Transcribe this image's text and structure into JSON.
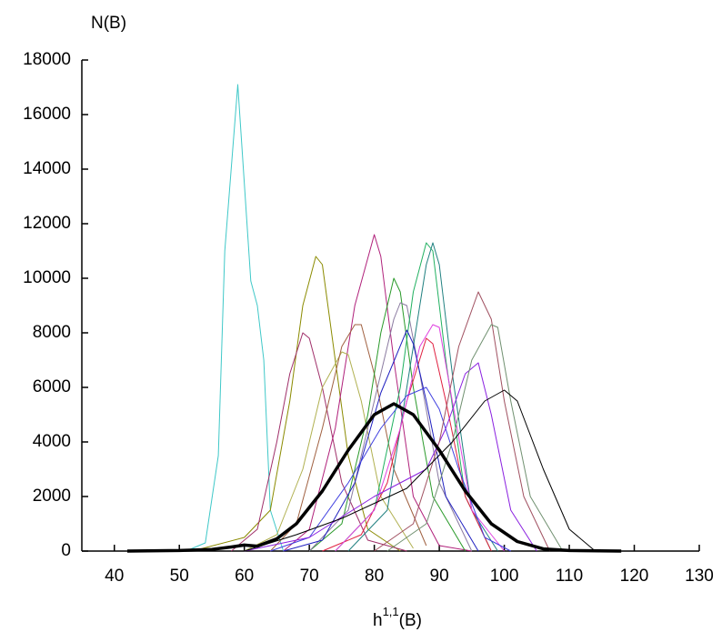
{
  "chart_data": {
    "type": "line",
    "ylabel": "N(B)",
    "xlabel": {
      "base": "h",
      "sup": "1,1",
      "suffix": "(B)"
    },
    "xlim": [
      35,
      130
    ],
    "ylim": [
      0,
      18000
    ],
    "xticks": [
      40,
      50,
      60,
      70,
      80,
      90,
      100,
      110,
      120,
      130
    ],
    "yticks": [
      0,
      2000,
      4000,
      6000,
      8000,
      10000,
      12000,
      14000,
      16000,
      18000
    ],
    "grid": false,
    "series": [
      {
        "color": "#3fc8c8",
        "line_width": 1,
        "x": [
          51,
          54,
          56,
          57,
          59,
          61,
          62,
          63,
          64,
          66
        ],
        "values": [
          0,
          300,
          3500,
          11000,
          17100,
          9900,
          9000,
          7000,
          1500,
          0
        ]
      },
      {
        "color": "#8b8b00",
        "line_width": 1,
        "x": [
          52,
          60,
          64,
          67,
          69,
          71,
          72,
          74,
          76,
          79,
          84
        ],
        "values": [
          0,
          500,
          1500,
          5500,
          9000,
          10800,
          10500,
          7000,
          3500,
          800,
          0
        ]
      },
      {
        "color": "#a0306a",
        "line_width": 1,
        "x": [
          58,
          62,
          65,
          67,
          69,
          70,
          72,
          75,
          79,
          85
        ],
        "values": [
          0,
          800,
          4000,
          6500,
          8000,
          7800,
          6000,
          2500,
          400,
          0
        ]
      },
      {
        "color": "#b0207a",
        "line_width": 1,
        "x": [
          66,
          70,
          74,
          77,
          80,
          81,
          83,
          86,
          90,
          95
        ],
        "values": [
          0,
          800,
          4500,
          9000,
          11600,
          10800,
          7000,
          2000,
          200,
          0
        ]
      },
      {
        "color": "#b0b050",
        "line_width": 1,
        "x": [
          60,
          65,
          69,
          72,
          75,
          76,
          78,
          81,
          86
        ],
        "values": [
          0,
          600,
          3000,
          6000,
          7300,
          7200,
          5500,
          2000,
          100
        ]
      },
      {
        "color": "#a06040",
        "line_width": 1,
        "x": [
          64,
          68,
          72,
          75,
          77,
          78,
          80,
          83,
          88
        ],
        "values": [
          0,
          1000,
          4500,
          7500,
          8300,
          8300,
          6500,
          3000,
          200
        ]
      },
      {
        "color": "#2a9a2a",
        "line_width": 1,
        "x": [
          70,
          75,
          79,
          81,
          83,
          84,
          86,
          89,
          94
        ],
        "values": [
          0,
          1000,
          5000,
          8000,
          10000,
          9500,
          6000,
          2000,
          0
        ]
      },
      {
        "color": "#8a7aa0",
        "line_width": 1,
        "x": [
          70,
          76,
          80,
          83,
          84,
          85,
          87,
          90,
          95
        ],
        "values": [
          0,
          1500,
          5500,
          8500,
          9100,
          9000,
          6500,
          2500,
          0
        ]
      },
      {
        "color": "#20b060",
        "line_width": 1,
        "x": [
          74,
          80,
          84,
          86,
          88,
          89,
          91,
          94,
          98
        ],
        "values": [
          0,
          1500,
          6000,
          9500,
          11300,
          11000,
          7000,
          2000,
          0
        ]
      },
      {
        "color": "#208080",
        "line_width": 1,
        "x": [
          76,
          82,
          85,
          88,
          89,
          90,
          92,
          95,
          99
        ],
        "values": [
          0,
          1500,
          6000,
          10500,
          11300,
          10500,
          6500,
          1500,
          0
        ]
      },
      {
        "color": "#e02040",
        "line_width": 1,
        "x": [
          72,
          78,
          82,
          85,
          88,
          89,
          91,
          94,
          98
        ],
        "values": [
          0,
          600,
          2500,
          5500,
          7800,
          7600,
          5500,
          2000,
          0
        ]
      },
      {
        "color": "#e040e0",
        "line_width": 1,
        "x": [
          74,
          80,
          84,
          87,
          89,
          90,
          92,
          95,
          100
        ],
        "values": [
          0,
          1500,
          4500,
          7500,
          8300,
          8200,
          5500,
          1500,
          0
        ]
      },
      {
        "color": "#2020c0",
        "line_width": 1,
        "x": [
          66,
          72,
          77,
          81,
          85,
          86,
          88,
          91,
          96
        ],
        "values": [
          0,
          400,
          2500,
          5800,
          8100,
          7600,
          5500,
          2000,
          0
        ]
      },
      {
        "color": "#4040e0",
        "line_width": 1,
        "x": [
          64,
          70,
          76,
          81,
          85,
          88,
          90,
          93,
          97,
          101
        ],
        "values": [
          0,
          500,
          2500,
          4500,
          5700,
          6000,
          5200,
          3000,
          500,
          0
        ]
      },
      {
        "color": "#8a20e0",
        "line_width": 1,
        "x": [
          60,
          70,
          80,
          88,
          91,
          94,
          96,
          98,
          101,
          105
        ],
        "values": [
          0,
          500,
          2000,
          3000,
          4500,
          6500,
          6900,
          5000,
          1500,
          0
        ]
      },
      {
        "color": "#a05060",
        "line_width": 1,
        "x": [
          80,
          86,
          90,
          93,
          96,
          98,
          100,
          103,
          107
        ],
        "values": [
          0,
          1000,
          4000,
          7500,
          9500,
          8500,
          5500,
          2000,
          0
        ]
      },
      {
        "color": "#709070",
        "line_width": 1,
        "x": [
          82,
          88,
          92,
          95,
          98,
          99,
          101,
          104,
          109
        ],
        "values": [
          0,
          1000,
          4000,
          7000,
          8300,
          8200,
          5500,
          2000,
          0
        ]
      },
      {
        "color": "#000000",
        "line_width": 1,
        "x": [
          60,
          68,
          75,
          85,
          92,
          97,
          100,
          102,
          106,
          110,
          114
        ],
        "values": [
          0,
          600,
          1200,
          2300,
          4000,
          5500,
          5900,
          5500,
          3000,
          800,
          0
        ]
      },
      {
        "color": "#000000",
        "line_width": 3.5,
        "x": [
          42,
          50,
          55,
          58,
          60,
          62,
          65,
          68,
          72,
          76,
          80,
          83,
          86,
          90,
          94,
          98,
          102,
          106,
          110,
          118
        ],
        "values": [
          0,
          20,
          60,
          150,
          220,
          180,
          450,
          1000,
          2200,
          3700,
          5000,
          5400,
          5000,
          3700,
          2200,
          1000,
          350,
          80,
          20,
          0
        ]
      }
    ]
  }
}
